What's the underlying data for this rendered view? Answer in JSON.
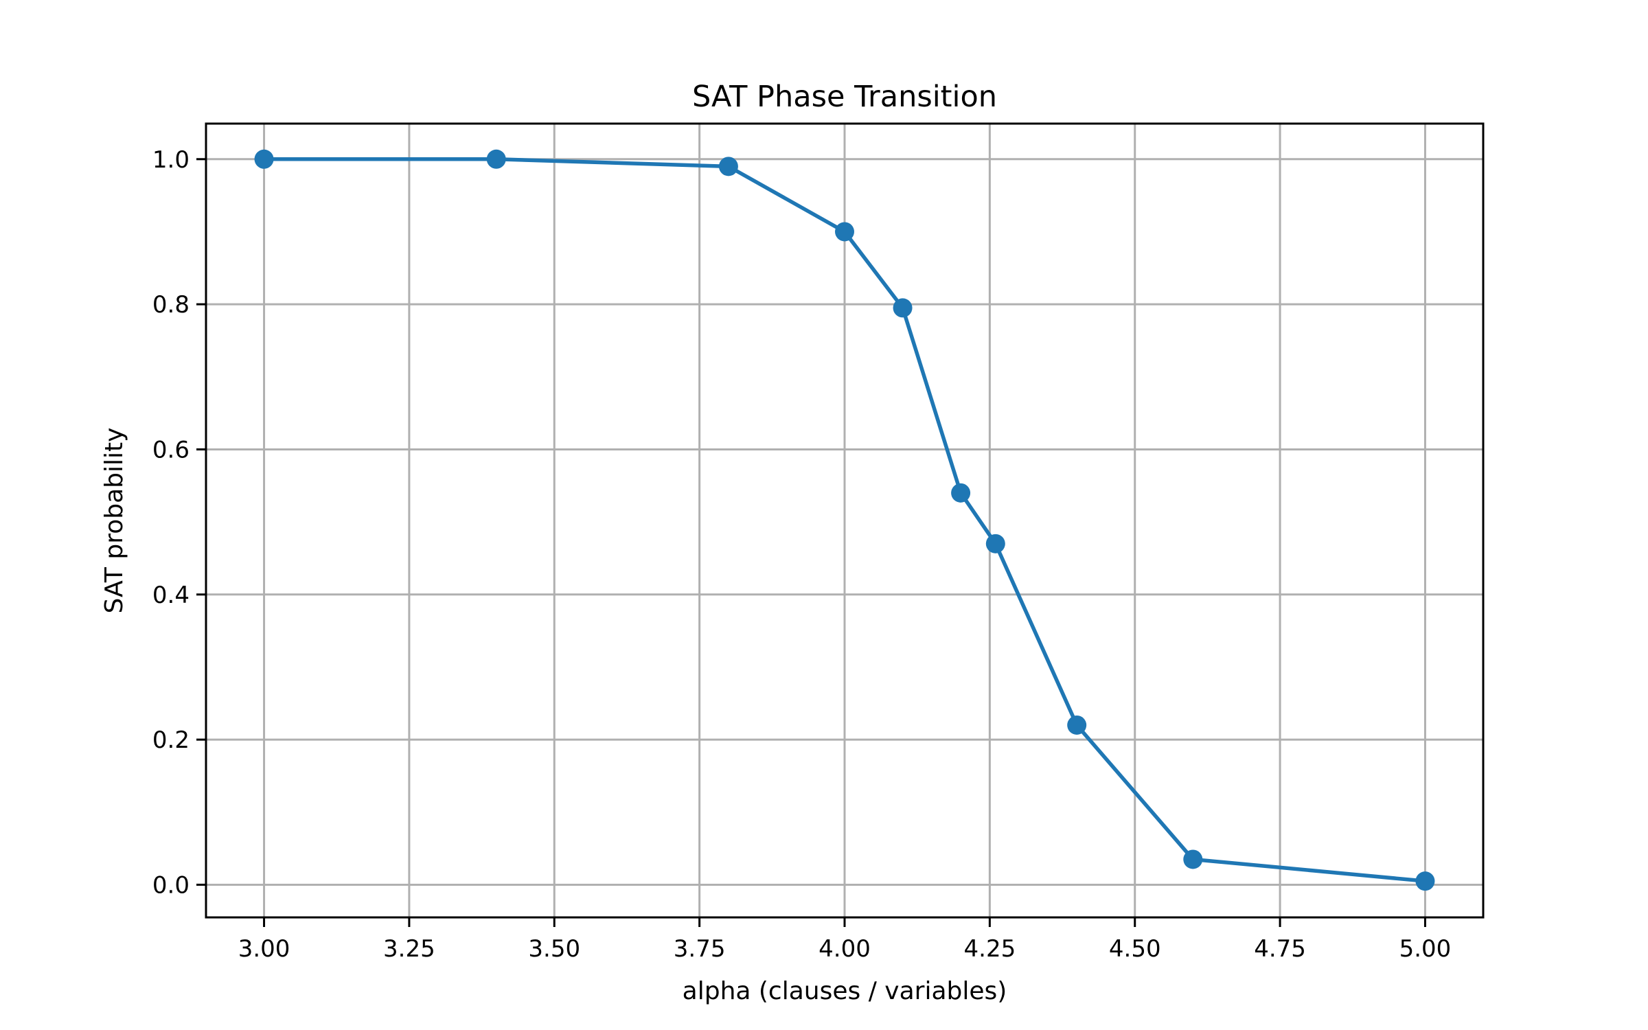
{
  "chart_data": {
    "type": "line",
    "title": "SAT Phase Transition",
    "xlabel": "alpha (clauses / variables)",
    "ylabel": "SAT probability",
    "x": [
      3.0,
      3.4,
      3.8,
      4.0,
      4.1,
      4.2,
      4.26,
      4.4,
      4.6,
      5.0
    ],
    "series": [
      {
        "name": "SAT probability",
        "values": [
          1.0,
          1.0,
          0.99,
          0.9,
          0.795,
          0.54,
          0.47,
          0.22,
          0.035,
          0.005
        ],
        "color": "#1f77b4",
        "marker": "circle"
      }
    ],
    "xlim": [
      2.9,
      5.1
    ],
    "ylim": [
      -0.045,
      1.049
    ],
    "xticks": [
      3.0,
      3.25,
      3.5,
      3.75,
      4.0,
      4.25,
      4.5,
      4.75,
      5.0
    ],
    "xtick_labels": [
      "3.00",
      "3.25",
      "3.50",
      "3.75",
      "4.00",
      "4.25",
      "4.50",
      "4.75",
      "5.00"
    ],
    "yticks": [
      0.0,
      0.2,
      0.4,
      0.6,
      0.8,
      1.0
    ],
    "ytick_labels": [
      "0.0",
      "0.2",
      "0.4",
      "0.6",
      "0.8",
      "1.0"
    ],
    "grid": true,
    "legend": null
  },
  "style": {
    "line_color": "#1f77b4",
    "grid_color": "#b0b0b0",
    "axis_color": "#000000"
  }
}
